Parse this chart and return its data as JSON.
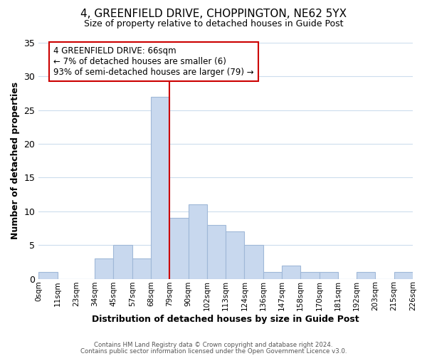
{
  "title": "4, GREENFIELD DRIVE, CHOPPINGTON, NE62 5YX",
  "subtitle": "Size of property relative to detached houses in Guide Post",
  "xlabel": "Distribution of detached houses by size in Guide Post",
  "ylabel": "Number of detached properties",
  "bar_color": "#c8d8ee",
  "bar_edge_color": "#a0b8d8",
  "tick_labels": [
    "0sqm",
    "11sqm",
    "23sqm",
    "34sqm",
    "45sqm",
    "57sqm",
    "68sqm",
    "79sqm",
    "90sqm",
    "102sqm",
    "113sqm",
    "124sqm",
    "136sqm",
    "147sqm",
    "158sqm",
    "170sqm",
    "181sqm",
    "192sqm",
    "203sqm",
    "215sqm",
    "226sqm"
  ],
  "counts": [
    1,
    0,
    0,
    3,
    5,
    3,
    27,
    9,
    11,
    8,
    7,
    5,
    1,
    2,
    1,
    1,
    0,
    1,
    0,
    1
  ],
  "ylim": [
    0,
    35
  ],
  "yticks": [
    0,
    5,
    10,
    15,
    20,
    25,
    30,
    35
  ],
  "vline_pos": 6.5,
  "vline_color": "#cc0000",
  "annotation_title": "4 GREENFIELD DRIVE: 66sqm",
  "annotation_line1": "← 7% of detached houses are smaller (6)",
  "annotation_line2": "93% of semi-detached houses are larger (79) →",
  "annotation_box_color": "#ffffff",
  "annotation_box_edge": "#cc0000",
  "footer1": "Contains HM Land Registry data © Crown copyright and database right 2024.",
  "footer2": "Contains public sector information licensed under the Open Government Licence v3.0.",
  "background_color": "#ffffff",
  "grid_color": "#ccdded"
}
